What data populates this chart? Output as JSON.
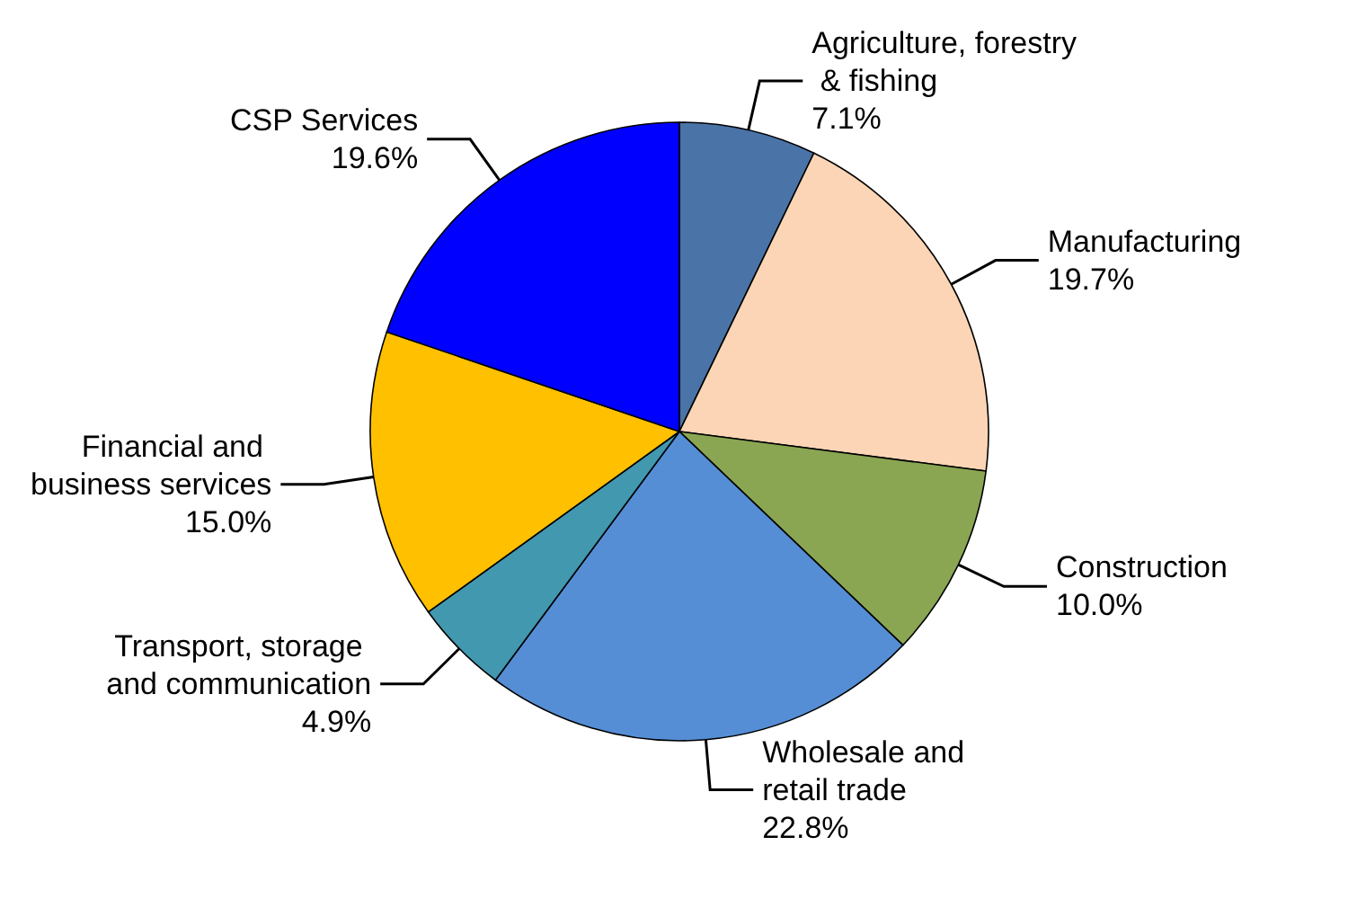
{
  "chart_data": {
    "type": "pie",
    "categories": [
      "Agriculture, forestry & fishing",
      "Manufacturing",
      "Construction",
      "Wholesale and retail trade",
      "Transport, storage and communication",
      "Financial and business services",
      "CSP Services"
    ],
    "values": [
      7.1,
      19.7,
      10.0,
      22.8,
      4.9,
      15.0,
      19.6
    ],
    "value_labels": [
      "7.1%",
      "19.7%",
      "10.0%",
      "22.8%",
      "4.9%",
      "15.0%",
      "19.6%"
    ],
    "colors": [
      "#4a74a8",
      "#fbd5b5",
      "#8aa652",
      "#558ed5",
      "#4198af",
      "#ffc000",
      "#0000ff"
    ],
    "legend": false
  }
}
